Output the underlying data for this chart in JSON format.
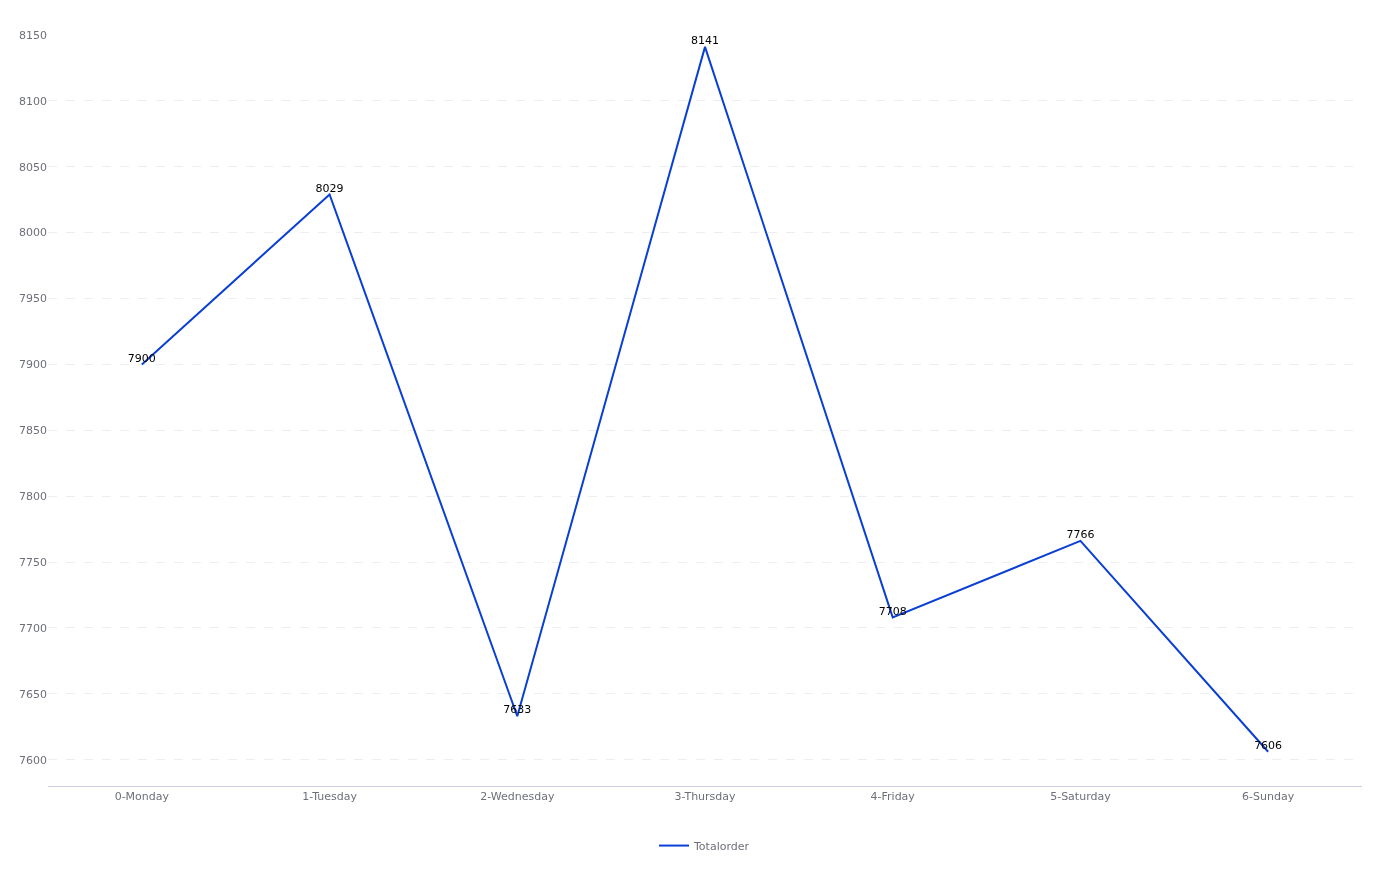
{
  "chart_data": {
    "type": "line",
    "categories": [
      "0-Monday",
      "1-Tuesday",
      "2-Wednesday",
      "3-Thursday",
      "4-Friday",
      "5-Saturday",
      "6-Sunday"
    ],
    "series": [
      {
        "name": "Totalorder",
        "color": "#0a3fd6",
        "values": [
          7900,
          8029,
          7633,
          8141,
          7708,
          7766,
          7606
        ]
      }
    ],
    "ylim": [
      7580,
      8150
    ],
    "yticks": [
      7600,
      7650,
      7700,
      7750,
      7800,
      7850,
      7900,
      7950,
      8000,
      8050,
      8100,
      8150
    ],
    "grid": "y",
    "legend": "bottom",
    "data_labels": true,
    "marker": "none",
    "line_style": "solid"
  }
}
